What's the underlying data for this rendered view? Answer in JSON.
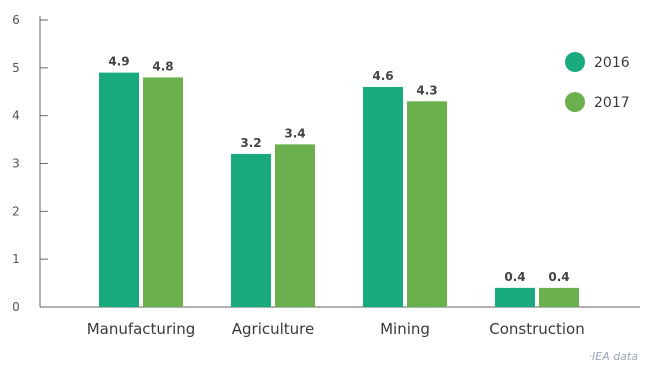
{
  "chart_data": {
    "type": "bar",
    "title": "",
    "xlabel": "",
    "ylabel": "",
    "categories": [
      "Manufacturing",
      "Agriculture",
      "Mining",
      "Construction"
    ],
    "series": [
      {
        "name": "2016",
        "color": "#19a97f",
        "values": [
          4.9,
          3.2,
          4.6,
          0.4
        ]
      },
      {
        "name": "2017",
        "color": "#6ab04c",
        "values": [
          4.8,
          3.4,
          4.3,
          0.4
        ]
      }
    ],
    "ylim": [
      0,
      6
    ],
    "yticks": [
      "0",
      "1",
      "2",
      "3",
      "4",
      "5",
      "6"
    ],
    "data_labels": [
      [
        "4.9",
        "3.2",
        "4.6",
        "0.4"
      ],
      [
        "4.8",
        "3.4",
        "4.3",
        "0.4"
      ]
    ],
    "grid": false,
    "legend_position": "top-right",
    "source_note": "·IEA data"
  }
}
